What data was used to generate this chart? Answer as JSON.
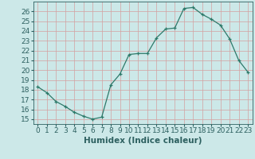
{
  "x": [
    0,
    1,
    2,
    3,
    4,
    5,
    6,
    7,
    8,
    9,
    10,
    11,
    12,
    13,
    14,
    15,
    16,
    17,
    18,
    19,
    20,
    21,
    22,
    23
  ],
  "y": [
    18.3,
    17.7,
    16.8,
    16.3,
    15.7,
    15.3,
    15.0,
    15.2,
    18.5,
    19.6,
    21.6,
    21.7,
    21.7,
    23.3,
    24.2,
    24.3,
    26.3,
    26.4,
    25.7,
    25.2,
    24.6,
    23.2,
    21.0,
    19.8
  ],
  "line_color": "#2d7a6a",
  "marker": "+",
  "marker_size": 3,
  "bg_color": "#cce8e8",
  "grid_color": "#d4a0a0",
  "xlabel": "Humidex (Indice chaleur)",
  "xlim": [
    -0.5,
    23.5
  ],
  "ylim": [
    14.5,
    27.0
  ],
  "yticks": [
    15,
    16,
    17,
    18,
    19,
    20,
    21,
    22,
    23,
    24,
    25,
    26
  ],
  "xticks": [
    0,
    1,
    2,
    3,
    4,
    5,
    6,
    7,
    8,
    9,
    10,
    11,
    12,
    13,
    14,
    15,
    16,
    17,
    18,
    19,
    20,
    21,
    22,
    23
  ],
  "axis_color": "#2d6060",
  "tick_color": "#2d6060",
  "label_fontsize": 7.5,
  "tick_fontsize": 6.5
}
